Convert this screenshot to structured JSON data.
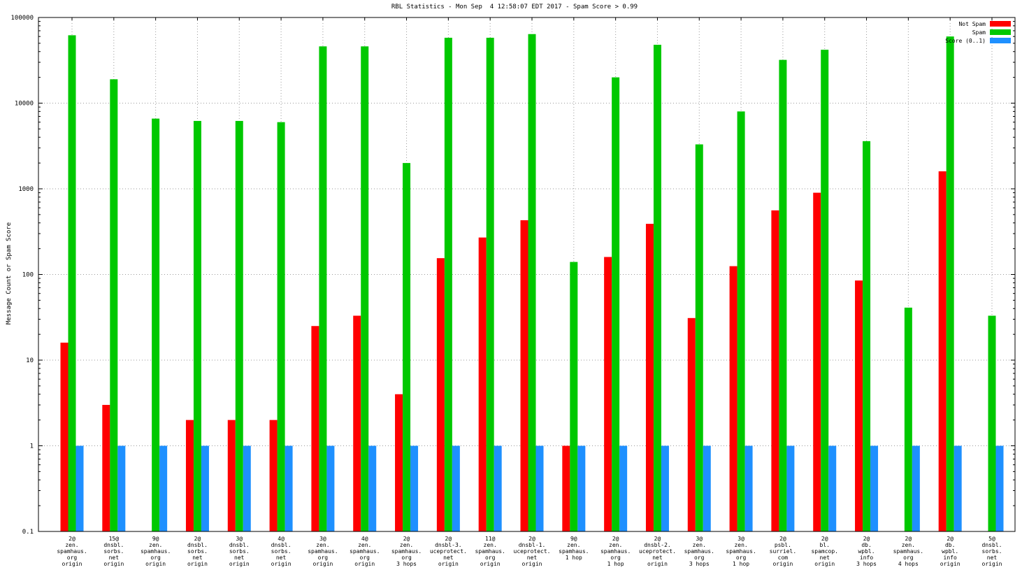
{
  "title": "RBL Statistics - Mon Sep  4 12:58:07 EDT 2017 - Spam Score > 0.99",
  "ylabel": "Message Count or Spam Score",
  "chart_data": {
    "type": "bar",
    "scale": "log",
    "title": "RBL Statistics - Mon Sep  4 12:58:07 EDT 2017 - Spam Score > 0.99",
    "xlabel": "",
    "ylabel": "Message Count or Spam Score",
    "ylim": [
      0.1,
      100000
    ],
    "yticks": [
      0.1,
      1,
      10,
      100,
      1000,
      10000,
      100000
    ],
    "grid": true,
    "legend_position": "top-right",
    "categories": [
      [
        "2@",
        "zen.",
        "spamhaus.",
        "org",
        "origin"
      ],
      [
        "15@",
        "dnsbl.",
        "sorbs.",
        "net",
        "origin"
      ],
      [
        "9@",
        "zen.",
        "spamhaus.",
        "org",
        "origin"
      ],
      [
        "2@",
        "dnsbl.",
        "sorbs.",
        "net",
        "origin"
      ],
      [
        "3@",
        "dnsbl.",
        "sorbs.",
        "net",
        "origin"
      ],
      [
        "4@",
        "dnsbl.",
        "sorbs.",
        "net",
        "origin"
      ],
      [
        "3@",
        "zen.",
        "spamhaus.",
        "org",
        "origin"
      ],
      [
        "4@",
        "zen.",
        "spamhaus.",
        "org",
        "origin"
      ],
      [
        "2@",
        "zen.",
        "spamhaus.",
        "org",
        "3 hops"
      ],
      [
        "2@",
        "dnsbl-3.",
        "uceprotect.",
        "net",
        "origin"
      ],
      [
        "11@",
        "zen.",
        "spamhaus.",
        "org",
        "origin"
      ],
      [
        "2@",
        "dnsbl-1.",
        "uceprotect.",
        "net",
        "origin"
      ],
      [
        "9@",
        "zen.",
        "spamhaus.",
        "1 hop"
      ],
      [
        "2@",
        "zen.",
        "spamhaus.",
        "org",
        "1 hop"
      ],
      [
        "2@",
        "dnsbl-2.",
        "uceprotect.",
        "net",
        "origin"
      ],
      [
        "3@",
        "zen.",
        "spamhaus.",
        "org",
        "3 hops"
      ],
      [
        "3@",
        "zen.",
        "spamhaus.",
        "org",
        "1 hop"
      ],
      [
        "2@",
        "psbl.",
        "surriel.",
        "com",
        "origin"
      ],
      [
        "2@",
        "bl.",
        "spamcop.",
        "net",
        "origin"
      ],
      [
        "2@",
        "db.",
        "wpbl.",
        "info",
        "3 hops"
      ],
      [
        "2@",
        "zen.",
        "spamhaus.",
        "org",
        "4 hops"
      ],
      [
        "2@",
        "db.",
        "wpbl.",
        "info",
        "origin"
      ],
      [
        "5@",
        "dnsbl.",
        "sorbs.",
        "net",
        "origin"
      ]
    ],
    "series": [
      {
        "name": "Not Spam",
        "color": "#ff0000",
        "values": [
          16,
          3,
          null,
          2,
          2,
          2,
          25,
          33,
          4,
          155,
          270,
          430,
          1,
          160,
          390,
          31,
          125,
          560,
          900,
          85,
          null,
          1600,
          null
        ]
      },
      {
        "name": "Spam",
        "color": "#00c800",
        "values": [
          62000,
          19000,
          6600,
          6200,
          6200,
          6000,
          46000,
          46000,
          2000,
          58000,
          58000,
          64000,
          140,
          20000,
          48000,
          3300,
          8000,
          32000,
          42000,
          3600,
          41,
          60000,
          33
        ]
      },
      {
        "name": "Score (0..1)",
        "color": "#1e90ff",
        "values": [
          1,
          1,
          1,
          1,
          1,
          1,
          1,
          1,
          1,
          1,
          1,
          1,
          1,
          1,
          1,
          1,
          1,
          1,
          1,
          1,
          1,
          1,
          1
        ]
      }
    ]
  }
}
